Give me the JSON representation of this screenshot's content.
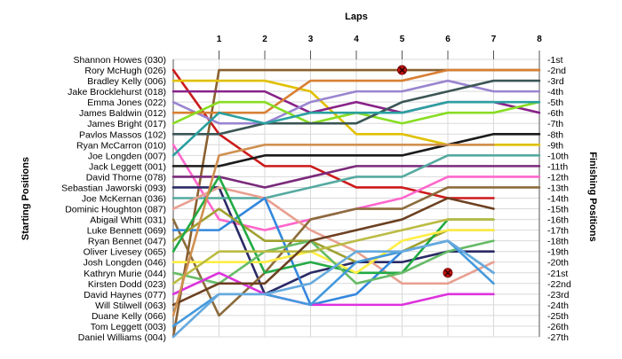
{
  "chart_data": {
    "type": "line",
    "title": "Laps",
    "ylabel_left": "Starting Positions",
    "ylabel_right": "Finishing Positions",
    "x": [
      0,
      1,
      2,
      3,
      4,
      5,
      6,
      7,
      8
    ],
    "xlim": [
      0,
      8
    ],
    "ylim": [
      1,
      27
    ],
    "y_reversed": true,
    "grid": true,
    "starting_grid": [
      "Shannon Howes (030)",
      "Rory McHugh (026)",
      "Bradley Kelly (006)",
      "Jake Brocklehurst (018)",
      "Emma Jones (022)",
      "James Baldwin (012)",
      "James Bright (017)",
      "Pavlos Massos (102)",
      "Ryan McCarron (010)",
      "Joe Longden (007)",
      "Jack Leggett (001)",
      "David Thorne (078)",
      "Sebastian Jaworski (093)",
      "Joe McKernan (036)",
      "Dominic Houghton (087)",
      "Abigail Whitt (031)",
      "Luke Bennett (069)",
      "Ryan Bennet (047)",
      "Oliver Livesey (065)",
      "Josh Longden (046)",
      "Kathryn Murie (044)",
      "Kirsten Dodd (023)",
      "David Haynes (077)",
      "Will Stilwell (063)",
      "Duane Kelly (066)",
      "Tom Leggett (003)",
      "Daniel Williams (004)"
    ],
    "finishing_positions": [
      "1st",
      "2nd",
      "3rd",
      "4th",
      "5th",
      "6th",
      "7th",
      "8th",
      "9th",
      "10th",
      "11th",
      "12th",
      "13th",
      "14th",
      "15th",
      "16th",
      "17th",
      "18th",
      "19th",
      "20th",
      "21st",
      "22nd",
      "23rd",
      "24th",
      "25th",
      "26th",
      "27th"
    ],
    "series": [
      {
        "color": "#cc1a1a",
        "values": [
          2,
          8,
          11,
          11,
          13,
          13,
          14,
          14,
          null
        ],
        "marker": null
      },
      {
        "color": "#8a6030",
        "values": [
          27,
          2,
          2,
          2,
          2,
          2,
          2,
          2,
          2
        ],
        "marker": {
          "lap": 5,
          "position": 2
        }
      },
      {
        "color": "#e0c000",
        "values": [
          3,
          3,
          3,
          4,
          8,
          8,
          9,
          9,
          9
        ],
        "marker": null
      },
      {
        "color": "#882288",
        "values": [
          4,
          4,
          4,
          6,
          5,
          6,
          5,
          5,
          6
        ],
        "marker": null
      },
      {
        "color": "#9a85d0",
        "values": [
          5,
          7,
          7,
          5,
          4,
          4,
          3,
          4,
          4
        ],
        "marker": null
      },
      {
        "color": "#d87f33",
        "values": [
          6,
          6,
          6,
          3,
          3,
          3,
          2,
          2,
          2
        ],
        "marker": null
      },
      {
        "color": "#88dd22",
        "values": [
          7,
          5,
          5,
          7,
          6,
          7,
          6,
          6,
          5
        ],
        "marker": null
      },
      {
        "color": "#3b5555",
        "values": [
          8,
          8,
          7,
          7,
          7,
          5,
          4,
          3,
          3
        ],
        "marker": null
      },
      {
        "color": "#ff66cc",
        "values": [
          9,
          16,
          17,
          16,
          15,
          14,
          12,
          12,
          12
        ],
        "marker": null
      },
      {
        "color": "#2aa0a0",
        "values": [
          10,
          6,
          7,
          6,
          6,
          6,
          5,
          5,
          5
        ],
        "marker": null
      },
      {
        "color": "#1a1a1a",
        "values": [
          11,
          11,
          10,
          10,
          10,
          10,
          9,
          8,
          8
        ],
        "marker": null
      },
      {
        "color": "#7a2a7a",
        "values": [
          12,
          12,
          13,
          12,
          11,
          11,
          11,
          11,
          11
        ],
        "marker": null
      },
      {
        "color": "#2a2a66",
        "values": [
          13,
          13,
          23,
          21,
          20,
          20,
          19,
          19,
          null
        ],
        "marker": null
      },
      {
        "color": "#55aaa0",
        "values": [
          14,
          14,
          14,
          13,
          12,
          12,
          10,
          10,
          10
        ],
        "marker": null
      },
      {
        "color": "#e8a090",
        "values": [
          15,
          13,
          14,
          17,
          19,
          22,
          22,
          20,
          null
        ],
        "marker": null
      },
      {
        "color": "#8c6c3c",
        "values": [
          16,
          25,
          21,
          16,
          15,
          15,
          13,
          13,
          13
        ],
        "marker": null
      },
      {
        "color": "#3388dd",
        "values": [
          17,
          17,
          14,
          24,
          23,
          19,
          18,
          21,
          null
        ],
        "marker": null
      },
      {
        "color": "#a0a030",
        "values": [
          18,
          15,
          18,
          18,
          20,
          19,
          17,
          17,
          null
        ],
        "marker": null
      },
      {
        "color": "#22aa44",
        "values": [
          19,
          12,
          21,
          20,
          21,
          21,
          16,
          16,
          null
        ],
        "marker": null
      },
      {
        "color": "#ffee44",
        "values": [
          20,
          20,
          20,
          19,
          21,
          18,
          17,
          17,
          null
        ],
        "marker": null
      },
      {
        "color": "#66bb66",
        "values": [
          21,
          22,
          19,
          18,
          22,
          21,
          19,
          18,
          null
        ],
        "marker": null
      },
      {
        "color": "#bbbb44",
        "values": [
          22,
          19,
          19,
          19,
          18,
          17,
          16,
          16,
          null
        ],
        "marker": null
      },
      {
        "color": "#dd33dd",
        "values": [
          23,
          21,
          23,
          24,
          24,
          24,
          23,
          23,
          null
        ],
        "marker": null
      },
      {
        "color": "#6c4020",
        "values": [
          24,
          22,
          22,
          18,
          17,
          16,
          14,
          15,
          null
        ],
        "marker": null
      },
      {
        "color": "#d09050",
        "values": [
          25,
          10,
          9,
          9,
          9,
          9,
          9,
          9,
          null
        ],
        "marker": null
      },
      {
        "color": "#4499dd",
        "values": [
          26,
          23,
          23,
          24,
          20,
          19,
          18,
          22,
          null
        ],
        "marker": {
          "lap": 6,
          "position": 21
        }
      },
      {
        "color": "#66aadd",
        "values": [
          27,
          23,
          23,
          22,
          19,
          19,
          18,
          21,
          null
        ],
        "marker": null
      }
    ]
  }
}
